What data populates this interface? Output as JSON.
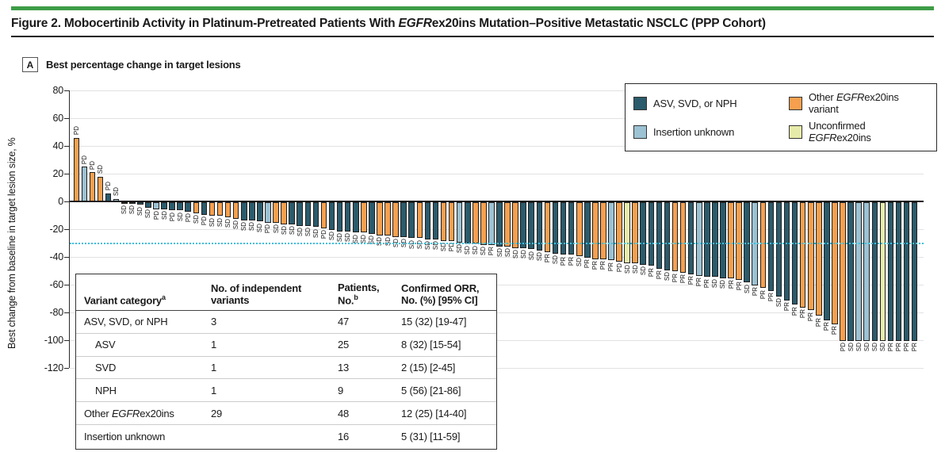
{
  "figure": {
    "rule_color": "#3E9C47",
    "title_segments": [
      {
        "t": "Figure 2. Mobocertinib Activity in Platinum-Pretreated Patients With ",
        "i": false
      },
      {
        "t": "EGFR",
        "i": true
      },
      {
        "t": "ex20ins Mutation–Positive Metastatic NSCLC (PPP Cohort)",
        "i": false
      }
    ],
    "panel_label": "A",
    "panel_caption": "Best percentage change in target lesions"
  },
  "chart_data": {
    "type": "bar",
    "subtype": "waterfall",
    "title": "Best percentage change in target lesions",
    "ylabel": "Best change from baseline in target lesion size, %",
    "ylim": [
      -120,
      80
    ],
    "yticks": [
      80,
      60,
      40,
      20,
      0,
      -20,
      -40,
      -60,
      -80,
      -100,
      -120
    ],
    "grid": true,
    "reference_line": -30,
    "reference_line_color": "#3FBFDC",
    "palette": {
      "dark": "#2B5B6C",
      "lightblue": "#9CC2D3",
      "orange": "#F6A04F",
      "yellow": "#E7EBAA"
    },
    "legend": [
      {
        "key": "dark",
        "segments": [
          {
            "t": "ASV, SVD, or NPH",
            "i": false
          }
        ]
      },
      {
        "key": "lightblue",
        "segments": [
          {
            "t": "Insertion unknown",
            "i": false
          }
        ]
      },
      {
        "key": "orange",
        "segments": [
          {
            "t": "Other ",
            "i": false
          },
          {
            "t": "EGFR",
            "i": true
          },
          {
            "t": "ex20ins variant",
            "i": false
          }
        ]
      },
      {
        "key": "yellow",
        "segments": [
          {
            "t": "Unconfirmed ",
            "i": false
          },
          {
            "t": "EGFR",
            "i": true
          },
          {
            "t": "ex20ins",
            "i": false
          }
        ]
      }
    ],
    "bars": [
      {
        "v": 46,
        "r": "PD",
        "c": "orange"
      },
      {
        "v": 25,
        "r": "PD",
        "c": "lightblue"
      },
      {
        "v": 21,
        "r": "PD",
        "c": "orange"
      },
      {
        "v": 18,
        "r": "SD",
        "c": "orange"
      },
      {
        "v": 6,
        "r": "PD",
        "c": "dark"
      },
      {
        "v": 2,
        "r": "SD",
        "c": "lightblue"
      },
      {
        "v": -1,
        "r": "SD",
        "c": "dark"
      },
      {
        "v": -1,
        "r": "SD",
        "c": "dark"
      },
      {
        "v": -2,
        "r": "SD",
        "c": "dark"
      },
      {
        "v": -4,
        "r": "SD",
        "c": "dark"
      },
      {
        "v": -5,
        "r": "PD",
        "c": "lightblue"
      },
      {
        "v": -5,
        "r": "SD",
        "c": "dark"
      },
      {
        "v": -6,
        "r": "PD",
        "c": "dark"
      },
      {
        "v": -6,
        "r": "SD",
        "c": "dark"
      },
      {
        "v": -7,
        "r": "PD",
        "c": "dark"
      },
      {
        "v": -8,
        "r": "SD",
        "c": "orange"
      },
      {
        "v": -9,
        "r": "PD",
        "c": "dark"
      },
      {
        "v": -10,
        "r": "SD",
        "c": "orange"
      },
      {
        "v": -10,
        "r": "SD",
        "c": "orange"
      },
      {
        "v": -11,
        "r": "SD",
        "c": "orange"
      },
      {
        "v": -12,
        "r": "SD",
        "c": "orange"
      },
      {
        "v": -13,
        "r": "SD",
        "c": "dark"
      },
      {
        "v": -13,
        "r": "SD",
        "c": "dark"
      },
      {
        "v": -14,
        "r": "SD",
        "c": "dark"
      },
      {
        "v": -15,
        "r": "PD",
        "c": "lightblue"
      },
      {
        "v": -15,
        "r": "SD",
        "c": "orange"
      },
      {
        "v": -16,
        "r": "SD",
        "c": "orange"
      },
      {
        "v": -16,
        "r": "SD",
        "c": "dark"
      },
      {
        "v": -17,
        "r": "SD",
        "c": "dark"
      },
      {
        "v": -17,
        "r": "SD",
        "c": "dark"
      },
      {
        "v": -18,
        "r": "SD",
        "c": "dark"
      },
      {
        "v": -19,
        "r": "PD",
        "c": "orange"
      },
      {
        "v": -20,
        "r": "SD",
        "c": "dark"
      },
      {
        "v": -21,
        "r": "SD",
        "c": "dark"
      },
      {
        "v": -21,
        "r": "SD",
        "c": "dark"
      },
      {
        "v": -22,
        "r": "SD",
        "c": "dark"
      },
      {
        "v": -22,
        "r": "SD",
        "c": "orange"
      },
      {
        "v": -23,
        "r": "SD",
        "c": "dark"
      },
      {
        "v": -24,
        "r": "SD",
        "c": "orange"
      },
      {
        "v": -24,
        "r": "SD",
        "c": "orange"
      },
      {
        "v": -25,
        "r": "SD",
        "c": "orange"
      },
      {
        "v": -25,
        "r": "SD",
        "c": "dark"
      },
      {
        "v": -26,
        "r": "SD",
        "c": "dark"
      },
      {
        "v": -26,
        "r": "SD",
        "c": "orange"
      },
      {
        "v": -27,
        "r": "SD",
        "c": "dark"
      },
      {
        "v": -27,
        "r": "SD",
        "c": "dark"
      },
      {
        "v": -28,
        "r": "SD",
        "c": "orange"
      },
      {
        "v": -28,
        "r": "PD",
        "c": "orange"
      },
      {
        "v": -29,
        "r": "SD",
        "c": "lightblue"
      },
      {
        "v": -30,
        "r": "SD",
        "c": "dark"
      },
      {
        "v": -30,
        "r": "SD",
        "c": "orange"
      },
      {
        "v": -31,
        "r": "SD",
        "c": "orange"
      },
      {
        "v": -31,
        "r": "PR",
        "c": "lightblue"
      },
      {
        "v": -32,
        "r": "SD",
        "c": "dark"
      },
      {
        "v": -32,
        "r": "SD",
        "c": "orange"
      },
      {
        "v": -33,
        "r": "SD",
        "c": "orange"
      },
      {
        "v": -33,
        "r": "SD",
        "c": "dark"
      },
      {
        "v": -34,
        "r": "SD",
        "c": "dark"
      },
      {
        "v": -35,
        "r": "SD",
        "c": "dark"
      },
      {
        "v": -36,
        "r": "PR",
        "c": "orange"
      },
      {
        "v": -37,
        "r": "SD",
        "c": "dark"
      },
      {
        "v": -38,
        "r": "PR",
        "c": "dark"
      },
      {
        "v": -38,
        "r": "PR",
        "c": "dark"
      },
      {
        "v": -39,
        "r": "SD",
        "c": "orange"
      },
      {
        "v": -40,
        "r": "PR",
        "c": "dark"
      },
      {
        "v": -41,
        "r": "PR",
        "c": "orange"
      },
      {
        "v": -41,
        "r": "PR",
        "c": "orange"
      },
      {
        "v": -42,
        "r": "PR",
        "c": "lightblue"
      },
      {
        "v": -43,
        "r": "PD",
        "c": "orange"
      },
      {
        "v": -44,
        "r": "SD",
        "c": "yellow"
      },
      {
        "v": -44,
        "r": "SD",
        "c": "orange"
      },
      {
        "v": -45,
        "r": "SD",
        "c": "dark"
      },
      {
        "v": -46,
        "r": "PR",
        "c": "dark"
      },
      {
        "v": -48,
        "r": "PR",
        "c": "dark"
      },
      {
        "v": -49,
        "r": "SD",
        "c": "dark"
      },
      {
        "v": -50,
        "r": "PR",
        "c": "orange"
      },
      {
        "v": -51,
        "r": "PR",
        "c": "orange"
      },
      {
        "v": -52,
        "r": "PR",
        "c": "dark"
      },
      {
        "v": -53,
        "r": "PR",
        "c": "lightblue"
      },
      {
        "v": -54,
        "r": "PR",
        "c": "dark"
      },
      {
        "v": -54,
        "r": "SD",
        "c": "dark"
      },
      {
        "v": -55,
        "r": "SD",
        "c": "dark"
      },
      {
        "v": -55,
        "r": "PR",
        "c": "orange"
      },
      {
        "v": -56,
        "r": "PR",
        "c": "orange"
      },
      {
        "v": -58,
        "r": "SD",
        "c": "dark"
      },
      {
        "v": -60,
        "r": "PR",
        "c": "lightblue"
      },
      {
        "v": -62,
        "r": "PR",
        "c": "orange"
      },
      {
        "v": -64,
        "r": "PR",
        "c": "dark"
      },
      {
        "v": -68,
        "r": "SD",
        "c": "dark"
      },
      {
        "v": -71,
        "r": "PR",
        "c": "dark"
      },
      {
        "v": -74,
        "r": "PR",
        "c": "dark"
      },
      {
        "v": -76,
        "r": "PR",
        "c": "orange"
      },
      {
        "v": -78,
        "r": "PR",
        "c": "orange"
      },
      {
        "v": -82,
        "r": "PR",
        "c": "orange"
      },
      {
        "v": -85,
        "r": "PR",
        "c": "dark"
      },
      {
        "v": -88,
        "r": "PR",
        "c": "orange"
      },
      {
        "v": -100,
        "r": "PD",
        "c": "orange"
      },
      {
        "v": -100,
        "r": "SD",
        "c": "dark"
      },
      {
        "v": -100,
        "r": "SD",
        "c": "lightblue"
      },
      {
        "v": -100,
        "r": "SD",
        "c": "lightblue"
      },
      {
        "v": -100,
        "r": "SD",
        "c": "dark"
      },
      {
        "v": -100,
        "r": "SD",
        "c": "yellow"
      },
      {
        "v": -100,
        "r": "PR",
        "c": "dark"
      },
      {
        "v": -100,
        "r": "PR",
        "c": "dark"
      },
      {
        "v": -100,
        "r": "PR",
        "c": "dark"
      },
      {
        "v": -100,
        "r": "PR",
        "c": "dark"
      }
    ]
  },
  "table": {
    "headers": [
      {
        "text": "Variant category",
        "sup": "a"
      },
      {
        "text": "No. of independent variants",
        "sup": ""
      },
      {
        "text": "Patients, No.",
        "sup": "b"
      },
      {
        "text": "Confirmed ORR, No. (%) [95% CI]",
        "sup": ""
      }
    ],
    "rows": [
      {
        "category": [
          {
            "t": "ASV, SVD, or NPH",
            "i": false
          }
        ],
        "indent": false,
        "variants": "3",
        "patients": "47",
        "orr": "15 (32) [19-47]"
      },
      {
        "category": [
          {
            "t": "ASV",
            "i": false
          }
        ],
        "indent": true,
        "variants": "1",
        "patients": "25",
        "orr": "8 (32) [15-54]"
      },
      {
        "category": [
          {
            "t": "SVD",
            "i": false
          }
        ],
        "indent": true,
        "variants": "1",
        "patients": "13",
        "orr": "2 (15) [2-45]"
      },
      {
        "category": [
          {
            "t": "NPH",
            "i": false
          }
        ],
        "indent": true,
        "variants": "1",
        "patients": "9",
        "orr": "5 (56) [21-86]"
      },
      {
        "category": [
          {
            "t": "Other ",
            "i": false
          },
          {
            "t": "EGFR",
            "i": true
          },
          {
            "t": "ex20ins",
            "i": false
          }
        ],
        "indent": false,
        "variants": "29",
        "patients": "48",
        "orr": "12 (25) [14-40]"
      },
      {
        "category": [
          {
            "t": "Insertion unknown",
            "i": false
          }
        ],
        "indent": false,
        "variants": "",
        "patients": "16",
        "orr": "5 (31) [11-59]"
      }
    ]
  }
}
